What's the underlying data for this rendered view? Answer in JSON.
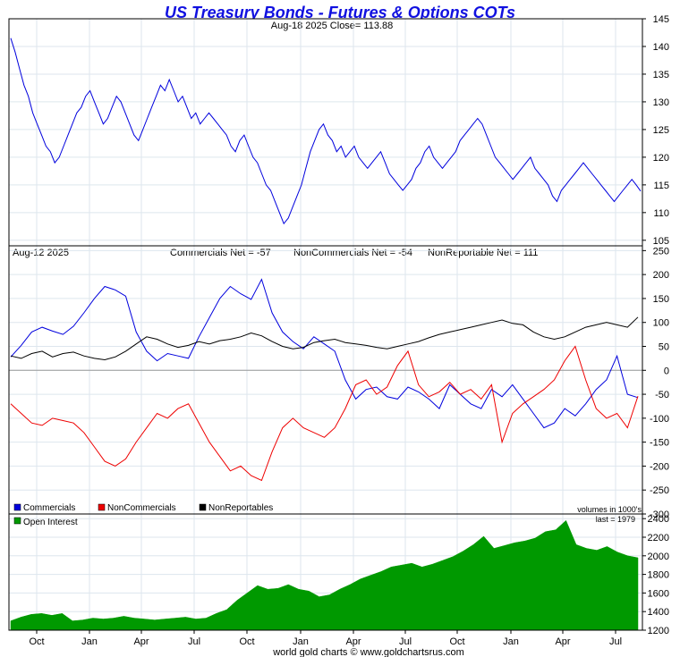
{
  "title": "US Treasury Bonds - Futures & Options COTs",
  "footer": "world gold charts © www.goldchartsrus.com",
  "colors": {
    "title": "#1010e0",
    "price": "#0000dd",
    "commercials": "#0000dd",
    "noncommercials": "#ee0000",
    "nonreportables": "#000000",
    "open_interest": "#009900",
    "grid": "#dde6ee"
  },
  "x_axis_labels": [
    "Oct",
    "Jan",
    "Apr",
    "Jul",
    "Oct",
    "Jan",
    "Apr",
    "Jul",
    "Oct",
    "Jan",
    "Apr",
    "Jul"
  ],
  "chart_data": [
    {
      "type": "line",
      "title": "US Treasury Bonds - Futures & Options COTs",
      "header": "Aug-18  2025   Close= 113.88",
      "ylim": [
        104,
        145
      ],
      "yticks": [
        105,
        110,
        115,
        120,
        125,
        130,
        135,
        140,
        145
      ],
      "series": [
        {
          "values": [
            141.5,
            139,
            136,
            133,
            131,
            128,
            126,
            124,
            122,
            121,
            119,
            120,
            122,
            124,
            126,
            128,
            129,
            131,
            132,
            130,
            128,
            126,
            127,
            129,
            131,
            130,
            128,
            126,
            124,
            123,
            125,
            127,
            129,
            131,
            133,
            132,
            134,
            132,
            130,
            131,
            129,
            127,
            128,
            126,
            127,
            128,
            127,
            126,
            125,
            124,
            122,
            121,
            123,
            124,
            122,
            120,
            119,
            117,
            115,
            114,
            112,
            110,
            108,
            109,
            111,
            113,
            115,
            118,
            121,
            123,
            125,
            126,
            124,
            123,
            121,
            122,
            120,
            121,
            122,
            120,
            119,
            118,
            119,
            120,
            121,
            119,
            117,
            116,
            115,
            114,
            115,
            116,
            118,
            119,
            121,
            122,
            120,
            119,
            118,
            119,
            120,
            121,
            123,
            124,
            125,
            126,
            127,
            126,
            124,
            122,
            120,
            119,
            118,
            117,
            116,
            117,
            118,
            119,
            120,
            118,
            117,
            116,
            115,
            113,
            112,
            114,
            115,
            116,
            117,
            118,
            119,
            118,
            117,
            116,
            115,
            114,
            113,
            112,
            113,
            114,
            115,
            116,
            115,
            113.88
          ]
        }
      ]
    },
    {
      "type": "line",
      "header_date": "Aug-12  2025",
      "header_commercials": "Commercials Net = -57",
      "header_noncommercials": "NonCommercials Net = -54",
      "header_nonreportable": "NonReportable Net = 111",
      "ylim": [
        -300,
        260
      ],
      "yticks": [
        -300,
        -250,
        -200,
        -150,
        -100,
        -50,
        0,
        50,
        100,
        150,
        200,
        250
      ],
      "legend": [
        "Commercials",
        "NonCommercials",
        "NonReportables"
      ],
      "series": [
        {
          "name": "Commercials",
          "values": [
            28,
            52,
            80,
            90,
            82,
            75,
            92,
            120,
            150,
            175,
            168,
            155,
            80,
            40,
            20,
            35,
            30,
            25,
            70,
            110,
            150,
            175,
            160,
            148,
            190,
            120,
            80,
            60,
            45,
            70,
            55,
            40,
            -20,
            -60,
            -40,
            -35,
            -55,
            -60,
            -35,
            -45,
            -60,
            -80,
            -30,
            -50,
            -70,
            -80,
            -40,
            -55,
            -30,
            -60,
            -90,
            -120,
            -110,
            -80,
            -95,
            -70,
            -40,
            -20,
            30,
            -50,
            -57
          ]
        },
        {
          "name": "NonCommercials",
          "values": [
            -70,
            -90,
            -110,
            -115,
            -100,
            -105,
            -110,
            -130,
            -160,
            -190,
            -200,
            -185,
            -150,
            -120,
            -90,
            -100,
            -80,
            -70,
            -110,
            -150,
            -180,
            -210,
            -200,
            -220,
            -230,
            -170,
            -120,
            -100,
            -120,
            -130,
            -140,
            -120,
            -80,
            -30,
            -20,
            -50,
            -35,
            10,
            40,
            -30,
            -55,
            -45,
            -25,
            -50,
            -40,
            -60,
            -30,
            -150,
            -90,
            -70,
            -55,
            -40,
            -20,
            20,
            50,
            -20,
            -80,
            -100,
            -90,
            -120,
            -54
          ]
        },
        {
          "name": "NonReportables",
          "values": [
            30,
            25,
            35,
            40,
            28,
            35,
            38,
            30,
            25,
            22,
            28,
            40,
            55,
            70,
            65,
            55,
            48,
            52,
            60,
            55,
            62,
            65,
            70,
            78,
            72,
            60,
            50,
            45,
            48,
            58,
            62,
            65,
            58,
            55,
            52,
            48,
            45,
            50,
            55,
            60,
            68,
            75,
            80,
            85,
            90,
            95,
            100,
            105,
            98,
            95,
            80,
            70,
            65,
            70,
            80,
            90,
            95,
            100,
            95,
            90,
            111
          ]
        }
      ]
    },
    {
      "type": "area",
      "legend": [
        "Open Interest"
      ],
      "note_units": "volumes in 1000's",
      "note_last": "last = 1979",
      "ylim": [
        1200,
        2450
      ],
      "yticks": [
        1200,
        1400,
        1600,
        1800,
        2000,
        2200,
        2400
      ],
      "series": [
        {
          "name": "Open Interest",
          "values": [
            1300,
            1340,
            1370,
            1380,
            1360,
            1380,
            1300,
            1310,
            1330,
            1320,
            1330,
            1350,
            1330,
            1320,
            1310,
            1320,
            1330,
            1340,
            1320,
            1330,
            1380,
            1420,
            1520,
            1600,
            1680,
            1640,
            1650,
            1690,
            1640,
            1620,
            1560,
            1580,
            1640,
            1690,
            1750,
            1790,
            1830,
            1880,
            1900,
            1920,
            1880,
            1910,
            1950,
            1990,
            2050,
            2120,
            2210,
            2080,
            2110,
            2140,
            2160,
            2190,
            2260,
            2280,
            2380,
            2120,
            2080,
            2060,
            2100,
            2040,
            2000,
            1979
          ]
        }
      ]
    }
  ]
}
